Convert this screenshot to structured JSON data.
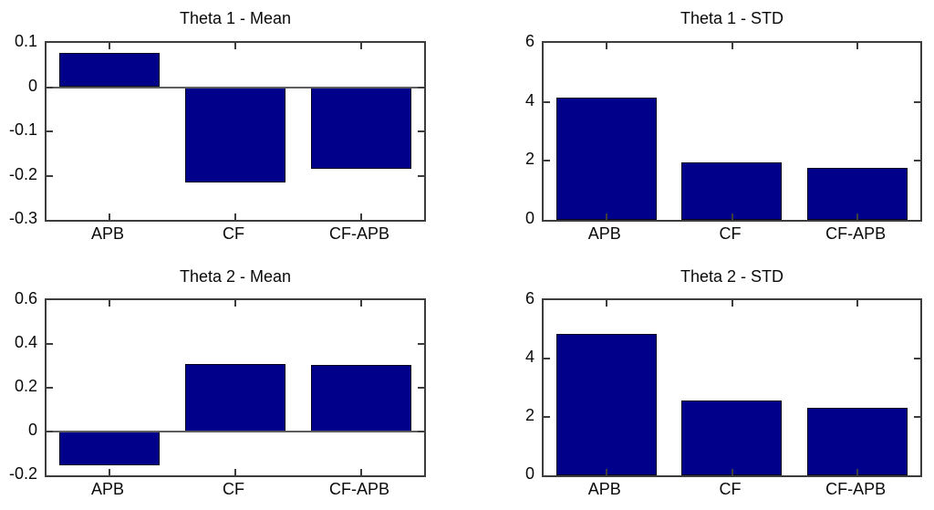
{
  "figure": {
    "background": "#ffffff",
    "description": "2x2 grid of MATLAB-style bar charts"
  },
  "colors": {
    "bar_fill": "#00008b",
    "bar_edge": "#00001e",
    "axis_line": "#3d3d3d",
    "zero_line": "#5e5e5e",
    "text": "#0a0a0a"
  },
  "chart_data": [
    {
      "type": "bar",
      "title": "Theta 1 - Mean",
      "categories": [
        "APB",
        "CF",
        "CF-APB"
      ],
      "values": [
        0.078,
        -0.215,
        -0.185
      ],
      "ylim": [
        -0.3,
        0.1
      ],
      "ytick_values": [
        0.1,
        0,
        -0.1,
        -0.2,
        -0.3
      ],
      "ytick_labels": [
        "0.1",
        "0",
        "-0.1",
        "-0.2",
        "-0.3"
      ],
      "xlabel": "",
      "ylabel": "",
      "grid": false,
      "legend": "none",
      "bar_width_fraction": 0.8
    },
    {
      "type": "bar",
      "title": "Theta 1 - STD",
      "categories": [
        "APB",
        "CF",
        "CF-APB"
      ],
      "values": [
        4.15,
        1.95,
        1.75
      ],
      "ylim": [
        0,
        6
      ],
      "ytick_values": [
        6,
        4,
        2,
        0
      ],
      "ytick_labels": [
        "6",
        "4",
        "2",
        "0"
      ],
      "xlabel": "",
      "ylabel": "",
      "grid": false,
      "legend": "none",
      "bar_width_fraction": 0.8
    },
    {
      "type": "bar",
      "title": "Theta 2 - Mean",
      "categories": [
        "APB",
        "CF",
        "CF-APB"
      ],
      "values": [
        -0.155,
        0.31,
        0.305
      ],
      "ylim": [
        -0.2,
        0.6
      ],
      "ytick_values": [
        0.6,
        0.4,
        0.2,
        0,
        -0.2
      ],
      "ytick_labels": [
        "0.6",
        "0.4",
        "0.2",
        "0",
        "-0.2"
      ],
      "xlabel": "",
      "ylabel": "",
      "grid": false,
      "legend": "none",
      "bar_width_fraction": 0.8
    },
    {
      "type": "bar",
      "title": "Theta 2 - STD",
      "categories": [
        "APB",
        "CF",
        "CF-APB"
      ],
      "values": [
        4.85,
        2.55,
        2.3
      ],
      "ylim": [
        0,
        6
      ],
      "ytick_values": [
        6,
        4,
        2,
        0
      ],
      "ytick_labels": [
        "6",
        "4",
        "2",
        "0"
      ],
      "xlabel": "",
      "ylabel": "",
      "grid": false,
      "legend": "none",
      "bar_width_fraction": 0.8
    }
  ]
}
